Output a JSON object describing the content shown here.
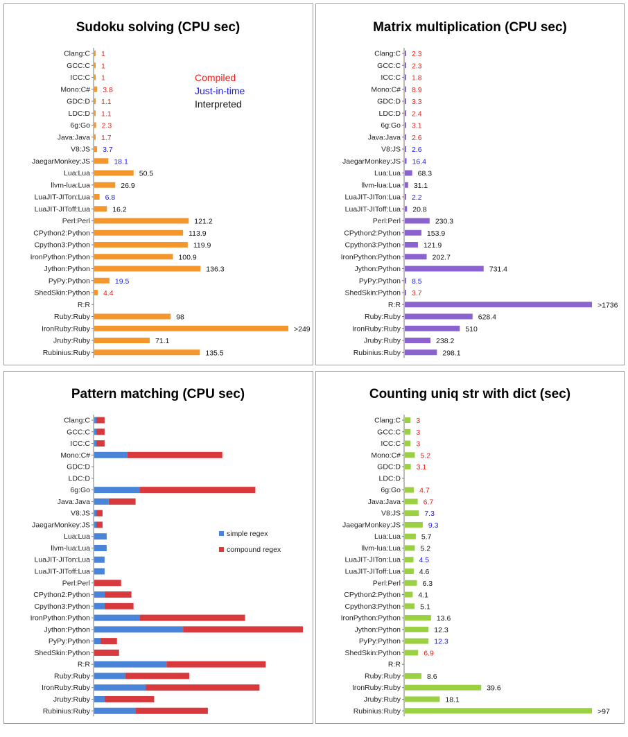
{
  "categories": [
    "Clang:C",
    "GCC:C",
    "ICC:C",
    "Mono:C#",
    "GDC:D",
    "LDC:D",
    "6g:Go",
    "Java:Java",
    "V8:JS",
    "JaegarMonkey:JS",
    "Lua:Lua",
    "llvm-lua:Lua",
    "LuaJIT-JITon:Lua",
    "LuaJIT-JIToff:Lua",
    "Perl:Perl",
    "CPython2:Python",
    "Cpython3:Python",
    "IronPython:Python",
    "Jython:Python",
    "PyPy:Python",
    "ShedSkin:Python",
    "R:R",
    "Ruby:Ruby",
    "IronRuby:Ruby",
    "Jruby:Ruby",
    "Rubinius:Ruby"
  ],
  "kinds": [
    "compiled",
    "compiled",
    "compiled",
    "compiled",
    "compiled",
    "compiled",
    "compiled",
    "compiled",
    "jit",
    "jit",
    "interpreted",
    "interpreted",
    "jit",
    "interpreted",
    "interpreted",
    "interpreted",
    "interpreted",
    "interpreted",
    "interpreted",
    "jit",
    "compiled",
    "interpreted",
    "interpreted",
    "interpreted",
    "interpreted",
    "interpreted"
  ],
  "colors": {
    "compiled": "#e8211a",
    "jit": "#1a1ae0",
    "interpreted": "#111111",
    "orange": "#f5962c",
    "purple": "#8a63cf",
    "green": "#9ad042",
    "blue": "#4a84d8",
    "red": "#d8393d",
    "border": "#999999"
  },
  "legend": {
    "compiled": "Compiled",
    "jit": "Just-in-time",
    "interpreted": "Interpreted"
  },
  "chart_data": [
    {
      "type": "bar",
      "title": "Sudoku solving (CPU sec)",
      "orientation": "horizontal",
      "xlim": [
        0,
        249
      ],
      "values": [
        1,
        1,
        1,
        3.8,
        1.1,
        1.1,
        2.3,
        1.7,
        3.7,
        18.1,
        50.5,
        26.9,
        6.8,
        16.2,
        121.2,
        113.9,
        119.9,
        100.9,
        136.3,
        19.5,
        4.4,
        null,
        98,
        249,
        71.1,
        135.5
      ],
      "labels": [
        "1",
        "1",
        "1",
        "3.8",
        "1.1",
        "1.1",
        "2.3",
        "1.7",
        "3.7",
        "18.1",
        "50.5",
        "26.9",
        "6.8",
        "16.2",
        "121.2",
        "113.9",
        "119.9",
        "100.9",
        "136.3",
        "19.5",
        "4.4",
        "",
        "98",
        ">249",
        "71.1",
        "135.5"
      ],
      "color": "#f5962c"
    },
    {
      "type": "bar",
      "title": "Matrix multiplication (CPU sec)",
      "orientation": "horizontal",
      "xlim": [
        0,
        1736
      ],
      "values": [
        2.3,
        2.3,
        1.8,
        8.9,
        3.3,
        2.4,
        3.1,
        2.6,
        2.6,
        16.4,
        68.3,
        31.1,
        2.2,
        20.8,
        230.3,
        153.9,
        121.9,
        202.7,
        731.4,
        8.5,
        3.7,
        1736,
        628.4,
        510,
        238.2,
        298.1
      ],
      "labels": [
        "2.3",
        "2.3",
        "1.8",
        "8.9",
        "3.3",
        "2.4",
        "3.1",
        "2.6",
        "2.6",
        "16.4",
        "68.3",
        "31.1",
        "2.2",
        "20.8",
        "230.3",
        "153.9",
        "121.9",
        "202.7",
        "731.4",
        "8.5",
        "3.7",
        ">1736",
        "628.4",
        "510",
        "238.2",
        "298.1"
      ],
      "color": "#8a63cf"
    },
    {
      "type": "bar",
      "title": "Pattern matching (CPU sec)",
      "orientation": "horizontal",
      "stacked": true,
      "xlim": [
        0,
        100
      ],
      "series": [
        {
          "name": "simple regex",
          "color": "#4a84d8",
          "values": [
            1,
            1,
            1,
            16,
            0,
            0,
            22,
            7,
            1,
            1,
            6,
            6,
            5,
            5,
            0,
            5,
            5,
            22,
            43,
            3,
            0,
            35,
            15,
            25,
            5,
            20
          ]
        },
        {
          "name": "compound regex",
          "color": "#d8393d",
          "values": [
            4,
            4,
            4,
            46,
            0,
            0,
            56,
            13,
            3,
            3,
            0,
            0,
            0,
            0,
            13,
            13,
            14,
            51,
            58,
            8,
            12,
            48,
            31,
            55,
            24,
            35
          ]
        }
      ]
    },
    {
      "type": "bar",
      "title": "Counting uniq str with dict (sec)",
      "orientation": "horizontal",
      "xlim": [
        0,
        97
      ],
      "values": [
        3,
        3,
        3,
        5.2,
        3.1,
        null,
        4.7,
        6.7,
        7.3,
        9.3,
        5.7,
        5.2,
        4.5,
        4.6,
        6.3,
        4.1,
        5.1,
        13.6,
        12.3,
        12.3,
        6.9,
        null,
        8.6,
        39.6,
        18.1,
        97
      ],
      "labels": [
        "3",
        "3",
        "3",
        "5.2",
        "3.1",
        "",
        "4.7",
        "6.7",
        "7.3",
        "9.3",
        "5.7",
        "5.2",
        "4.5",
        "4.6",
        "6.3",
        "4.1",
        "5.1",
        "13.6",
        "12.3",
        "12.3",
        "6.9",
        "",
        "8.6",
        "39.6",
        "18.1",
        ">97"
      ],
      "color": "#9ad042"
    }
  ]
}
